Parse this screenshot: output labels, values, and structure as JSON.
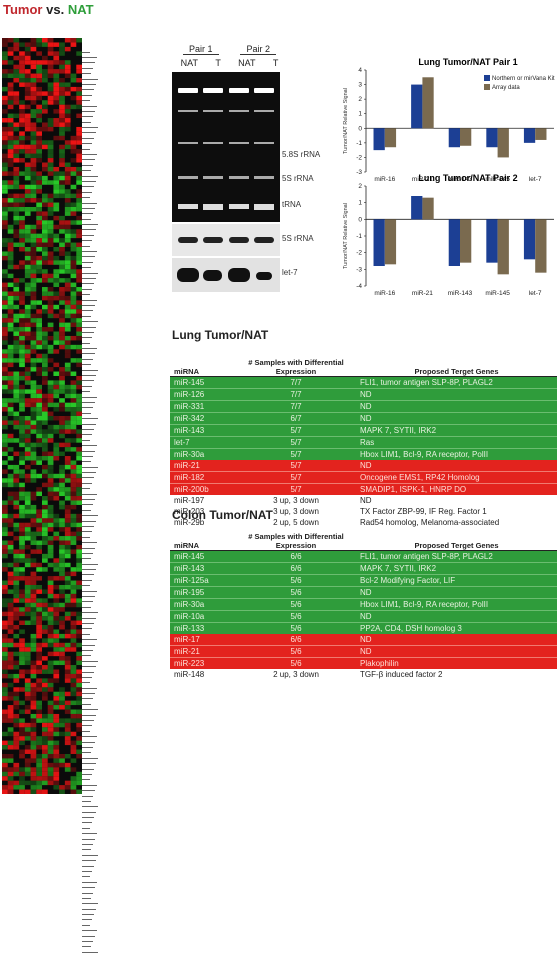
{
  "header": {
    "tumor": "Tumor",
    "vs": "vs.",
    "nat": "NAT"
  },
  "gel": {
    "pair1": "Pair 1",
    "pair2": "Pair 2",
    "lanes": [
      "NAT",
      "T",
      "NAT",
      "T"
    ],
    "labels": [
      "5.8S rRNA",
      "5S rRNA",
      "tRNA"
    ],
    "blot1": "5S rRNA",
    "blot2": "let-7"
  },
  "charts": [
    {
      "type": "bar",
      "title": "Lung Tumor/NAT Pair 1",
      "ylabel": "Tumor/NAT Relative Signal",
      "categories": [
        "miR-16",
        "miR-21",
        "miR-143",
        "miR-145",
        "let-7"
      ],
      "series": [
        {
          "name": "Northern or mirVana Kit",
          "values": [
            -1.5,
            3.0,
            -1.3,
            -1.3,
            -1.0
          ],
          "color": "#1c3f94"
        },
        {
          "name": "Array data",
          "values": [
            -1.3,
            3.5,
            -1.2,
            -2.0,
            -0.8
          ],
          "color": "#7a6a4f"
        }
      ],
      "ylim": [
        -3,
        4
      ],
      "ticks": [
        -3,
        -2,
        -1,
        0,
        1,
        2,
        3,
        4
      ]
    },
    {
      "type": "bar",
      "title": "Lung Tumor/NAT Pair 2",
      "ylabel": "Tumor/NAT Relative Signal",
      "categories": [
        "miR-16",
        "miR-21",
        "miR-143",
        "miR-145",
        "let-7"
      ],
      "series": [
        {
          "values": [
            -2.8,
            1.4,
            -2.8,
            -2.6,
            -2.4
          ],
          "color": "#1c3f94"
        },
        {
          "values": [
            -2.7,
            1.3,
            -2.6,
            -3.3,
            -3.2
          ],
          "color": "#7a6a4f"
        }
      ],
      "ylim": [
        -4,
        2
      ],
      "ticks": [
        -4,
        -3,
        -2,
        -1,
        0,
        1,
        2
      ]
    }
  ],
  "lung": {
    "title": "Lung Tumor/NAT",
    "headers": [
      "miRNA",
      "# Samples with Differential Expression",
      "Proposed Terget Genes"
    ],
    "rows": [
      {
        "c": "g",
        "mirna": "miR-145",
        "samples": "7/7",
        "genes": "FLI1, tumor antigen SLP-8P, PLAGL2"
      },
      {
        "c": "g",
        "mirna": "miR-126",
        "samples": "7/7",
        "genes": "ND"
      },
      {
        "c": "g",
        "mirna": "miR-331",
        "samples": "7/7",
        "genes": "ND"
      },
      {
        "c": "g",
        "mirna": "miR-342",
        "samples": "6/7",
        "genes": "ND"
      },
      {
        "c": "g",
        "mirna": "miR-143",
        "samples": "5/7",
        "genes": "MAPK 7, SYTII, IRK2"
      },
      {
        "c": "g",
        "mirna": "let-7",
        "samples": "5/7",
        "genes": "Ras"
      },
      {
        "c": "g",
        "mirna": "miR-30a",
        "samples": "5/7",
        "genes": "Hbox LIM1, Bcl-9, RA receptor, PolII"
      },
      {
        "c": "r",
        "mirna": "miR-21",
        "samples": "5/7",
        "genes": "ND"
      },
      {
        "c": "r",
        "mirna": "miR-182",
        "samples": "5/7",
        "genes": "Oncogene EMS1, RP42 Homolog"
      },
      {
        "c": "r",
        "mirna": "miR-200b",
        "samples": "5/7",
        "genes": "SMADIP1, ISPK-1, HNRP DO"
      },
      {
        "c": "w",
        "mirna": "miR-197",
        "samples": "3 up, 3 down",
        "genes": "ND"
      },
      {
        "c": "w",
        "mirna": "miR-203",
        "samples": "3 up, 3 down",
        "genes": "TX Factor ZBP-99, IF Reg. Factor 1"
      },
      {
        "c": "w",
        "mirna": "miR-29b",
        "samples": "2 up, 5 down",
        "genes": "Rad54 homolog, Melanoma-associated"
      }
    ]
  },
  "colon": {
    "title": "Colon Tumor/NAT",
    "headers": [
      "miRNA",
      "# Samples with Differential Expression",
      "Proposed Terget Genes"
    ],
    "rows": [
      {
        "c": "g",
        "mirna": "miR-145",
        "samples": "6/6",
        "genes": "FLI1, tumor antigen SLP-8P, PLAGL2"
      },
      {
        "c": "g",
        "mirna": "miR-143",
        "samples": "6/6",
        "genes": "MAPK 7, SYTII, IRK2"
      },
      {
        "c": "g",
        "mirna": "miR-125a",
        "samples": "5/6",
        "genes": "Bcl-2 Modifying Factor, LIF"
      },
      {
        "c": "g",
        "mirna": "miR-195",
        "samples": "5/6",
        "genes": "ND"
      },
      {
        "c": "g",
        "mirna": "miR-30a",
        "samples": "5/6",
        "genes": "Hbox LIM1, Bcl-9, RA receptor, PolII"
      },
      {
        "c": "g",
        "mirna": "miR-10a",
        "samples": "5/6",
        "genes": "ND"
      },
      {
        "c": "g",
        "mirna": "miR-133",
        "samples": "5/6",
        "genes": "PP2A, CD4, DSH homolog 3"
      },
      {
        "c": "r",
        "mirna": "miR-17",
        "samples": "6/6",
        "genes": "ND"
      },
      {
        "c": "r",
        "mirna": "miR-21",
        "samples": "5/6",
        "genes": "ND"
      },
      {
        "c": "r",
        "mirna": "miR-223",
        "samples": "5/6",
        "genes": "Plakophilin"
      },
      {
        "c": "w",
        "mirna": "miR-148",
        "samples": "2 up, 3 down",
        "genes": "TGF-β induced factor 2"
      }
    ]
  }
}
